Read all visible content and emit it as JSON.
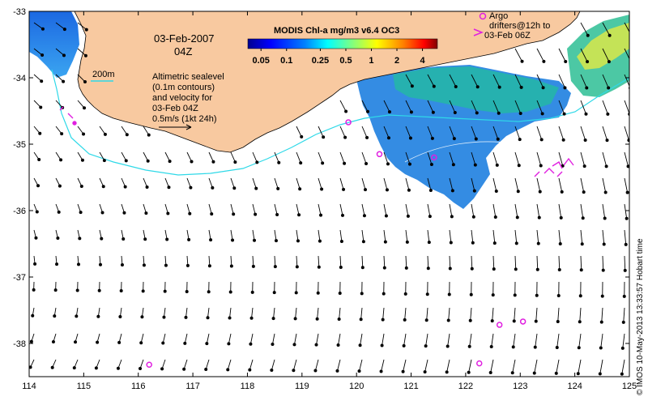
{
  "map": {
    "date_label": "03-Feb-2007",
    "time_label": "04Z",
    "product_title": "MODIS Chl-a mg/m3 v6.4 OC3",
    "colorbar_ticks": [
      "0.05",
      "0.1",
      "0.25",
      "0.5",
      "1",
      "2",
      "4"
    ],
    "colorbar_values": [
      0.05,
      0.1,
      0.25,
      0.5,
      1,
      2,
      4
    ],
    "isobath_label": "200m",
    "legend_lines": [
      "Altimetric sealevel",
      "(0.1m contours)",
      "and velocity for",
      "03-Feb 04Z",
      "0.5m/s (1kt 24h)"
    ],
    "argo_lines": [
      "Argo",
      "drifters@12h to",
      "03-Feb 06Z"
    ],
    "credit": "© IMOS 10-May-2013 13:33:57 Hobart time",
    "lon_ticks": [
      "114",
      "115",
      "116",
      "117",
      "118",
      "119",
      "120",
      "121",
      "122",
      "123",
      "124",
      "125"
    ],
    "lat_ticks": [
      "-33",
      "-34",
      "-35",
      "-36",
      "-37",
      "-38"
    ],
    "lon_range": [
      114,
      125
    ],
    "lat_range": [
      -38.5,
      -33
    ],
    "argo_floats": [
      {
        "lon": 116.2,
        "lat": -38.32
      },
      {
        "lon": 119.85,
        "lat": -34.67
      },
      {
        "lon": 120.42,
        "lat": -35.15
      },
      {
        "lon": 121.42,
        "lat": -35.2
      },
      {
        "lon": 122.25,
        "lat": -38.3
      },
      {
        "lon": 122.62,
        "lat": -37.72
      },
      {
        "lon": 123.05,
        "lat": -37.67
      }
    ],
    "colors": {
      "land": "#F8C9A0",
      "isobath": "#2FD9E8",
      "argo": "#E020E0",
      "arrow": "#000000"
    }
  }
}
